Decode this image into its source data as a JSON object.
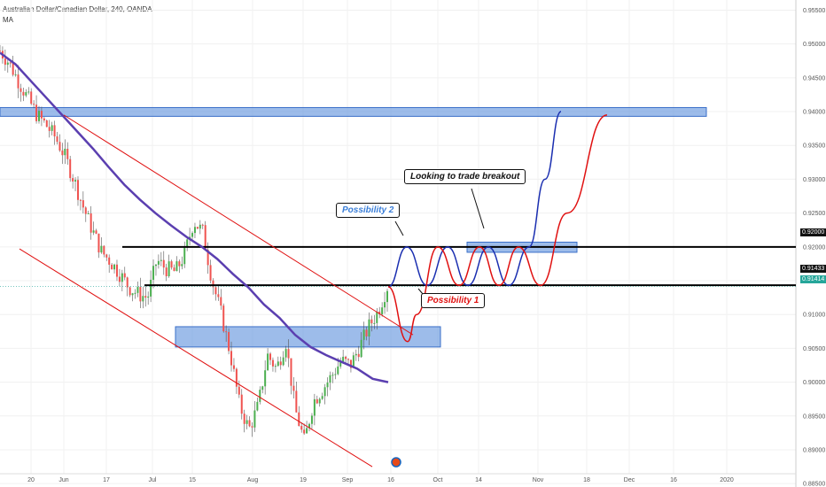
{
  "header": {
    "symbol_line": "Australian Dollar/Canadian Dollar, 240, OANDA",
    "indicator": "MA"
  },
  "annotations": {
    "possibility2": "Possibility 2",
    "possibility1": "Possibility 1",
    "breakout": "Looking to trade breakout"
  },
  "price_tags": {
    "level_high": "0.92000",
    "level_mid": "0.91433",
    "last_price": "0.91414"
  },
  "colors": {
    "zone": "#5b8fdc",
    "channel": "#e01010",
    "ma": "#5b3fb0",
    "path_blue": "#1a2eb0",
    "path_red": "#e01010",
    "candle_up": "#4caf50",
    "candle_down": "#ef5350",
    "last_price_tag": "#26a69a",
    "level_tag": "#111111"
  },
  "chart_data": {
    "type": "candlestick",
    "title": "Australian Dollar/Canadian Dollar, 240, OANDA",
    "x_ticks": [
      "20",
      "Jun",
      "17",
      "Jul",
      "15",
      "Aug",
      "19",
      "Sep",
      "16",
      "Oct",
      "14",
      "Nov",
      "18",
      "Dec",
      "16",
      "2020"
    ],
    "y_ticks": [
      "0.95500",
      "0.95000",
      "0.94500",
      "0.94000",
      "0.93500",
      "0.93000",
      "0.92500",
      "0.92000",
      "0.91500",
      "0.91000",
      "0.90500",
      "0.90000",
      "0.89500",
      "0.89000",
      "0.88500"
    ],
    "ylim": [
      0.8845,
      0.9565
    ],
    "levels": [
      0.92,
      0.91433
    ],
    "last_price": 0.91414,
    "zones": [
      {
        "name": "resistance-zone",
        "x_from": "20",
        "x_to": "16",
        "y_low": 0.9393,
        "y_high": 0.9406
      },
      {
        "name": "support-zone",
        "x_from": "Jul",
        "x_to": "Oct",
        "y_low": 0.9052,
        "y_high": 0.9082
      },
      {
        "name": "breakout-zone",
        "x_from": "14",
        "x_to": "18",
        "y_low": 0.9192,
        "y_high": 0.9207
      }
    ],
    "price_path": [
      [
        0.949,
        0.9472,
        0.9445,
        0.942,
        0.9395,
        0.938,
        0.9362,
        0.9335,
        0.93,
        0.926,
        0.9225,
        0.9193,
        0.9178,
        0.916,
        0.914,
        0.913,
        0.9125
      ],
      [
        0.918,
        0.9168,
        0.9163,
        0.9188,
        0.9238,
        0.9222,
        0.915,
        0.91,
        0.904,
        0.8965,
        0.893,
        0.8965,
        0.904,
        0.902,
        0.906,
        0.896,
        0.8912,
        0.8972,
        0.899,
        0.901,
        0.9032,
        0.9025,
        0.9052,
        0.9082,
        0.9105,
        0.9141
      ]
    ],
    "moving_average": [
      0.9487,
      0.947,
      0.9445,
      0.942,
      0.9395,
      0.937,
      0.9345,
      0.9318,
      0.9292,
      0.927,
      0.925,
      0.9232,
      0.9215,
      0.92,
      0.9182,
      0.916,
      0.914,
      0.9115,
      0.9095,
      0.907,
      0.9052,
      0.904,
      0.903,
      0.902,
      0.9005,
      0.9
    ],
    "channel": {
      "upper": [
        [
          0.9395,
          0.907
        ]
      ],
      "lower": [
        [
          0.9197,
          0.8875
        ]
      ]
    },
    "projection_blue": [
      0.9141,
      0.92,
      0.9143,
      0.92,
      0.9143,
      0.92,
      0.9143,
      0.92,
      0.93,
      0.94
    ],
    "projection_red": [
      0.9141,
      0.906,
      0.91,
      0.92,
      0.9143,
      0.92,
      0.9143,
      0.92,
      0.9143,
      0.925,
      0.9395
    ]
  }
}
